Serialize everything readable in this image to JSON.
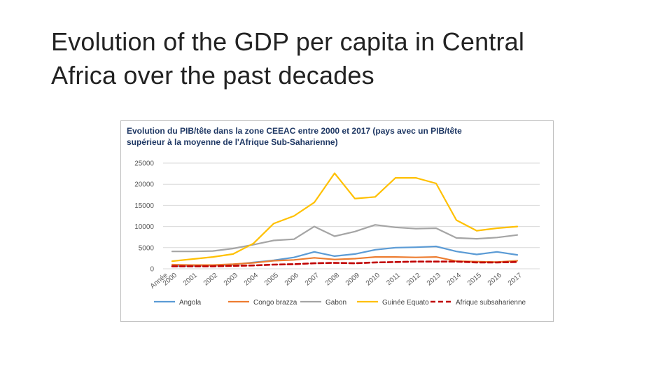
{
  "slide": {
    "title_line1": "Evolution of the GDP per capita in Central",
    "title_line2": "Africa over the past decades"
  },
  "chart_data": {
    "type": "line",
    "title_line1": "Evolution du PIB/tête dans la zone CEEAC entre 2000 et 2017 (pays avec un PIB/tête",
    "title_line2": "supérieur à la moyenne de l'Afrique Sub-Saharienne)",
    "x_axis_label": "Année",
    "categories": [
      "2000",
      "2001",
      "2002",
      "2003",
      "2004",
      "2005",
      "2006",
      "2007",
      "2008",
      "2009",
      "2010",
      "2011",
      "2012",
      "2013",
      "2014",
      "2015",
      "2016",
      "2017"
    ],
    "ylim": [
      0,
      25000
    ],
    "yticks": [
      0,
      5000,
      10000,
      15000,
      20000,
      25000
    ],
    "ytick_labels": [
      "0",
      "5000",
      "10000",
      "15000",
      "20000",
      "25000"
    ],
    "grid": true,
    "legend_position": "bottom",
    "series": [
      {
        "name": "Angola",
        "color": "#5b9bd5",
        "dashed": false,
        "values": [
          700,
          750,
          850,
          1000,
          1500,
          2000,
          2700,
          4000,
          3000,
          3500,
          4500,
          5000,
          5100,
          5300,
          4100,
          3400,
          4000,
          3300
        ]
      },
      {
        "name": "Congo brazza",
        "color": "#ed7d31",
        "dashed": false,
        "values": [
          1000,
          900,
          900,
          1100,
          1400,
          1900,
          2100,
          2600,
          2200,
          2400,
          2800,
          2800,
          2700,
          2800,
          1800,
          1700,
          1600,
          1900
        ]
      },
      {
        "name": "Gabon",
        "color": "#a5a5a5",
        "dashed": false,
        "values": [
          4100,
          4100,
          4200,
          4800,
          5700,
          6700,
          7000,
          10000,
          7700,
          8800,
          10400,
          9800,
          9500,
          9600,
          7300,
          7100,
          7400,
          8000
        ]
      },
      {
        "name": "Guinée Equato",
        "color": "#ffc000",
        "dashed": false,
        "values": [
          1800,
          2300,
          2800,
          3500,
          6000,
          10700,
          12500,
          15700,
          22600,
          16600,
          17000,
          21500,
          21500,
          20200,
          11500,
          9000,
          9600,
          10000
        ]
      },
      {
        "name": "Afrique subsaharienne",
        "color": "#c00000",
        "dashed": true,
        "values": [
          600,
          600,
          600,
          700,
          800,
          1000,
          1100,
          1300,
          1400,
          1300,
          1500,
          1600,
          1700,
          1700,
          1700,
          1500,
          1500,
          1600
        ]
      }
    ]
  }
}
